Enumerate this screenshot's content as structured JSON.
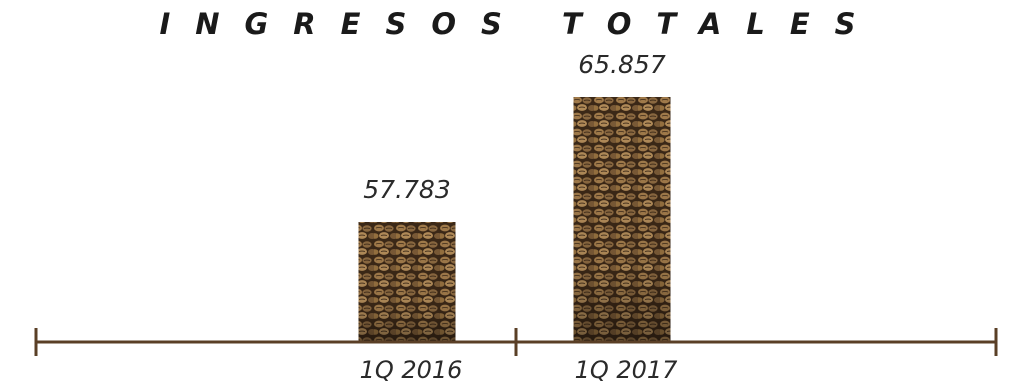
{
  "chart_data": {
    "type": "bar",
    "title": "INGRESOS TOTALES",
    "categories": [
      "1Q 2016",
      "1Q 2017"
    ],
    "values": [
      57783,
      65857
    ],
    "value_labels": [
      "57.783",
      "65.857"
    ],
    "xlabel": "",
    "ylabel": "",
    "grid": false,
    "bar_texture": "coffee-beans",
    "colors": {
      "axis": "#5a3f26",
      "bean_dark": "#2e1f12",
      "bean_mid": "#7a5a36",
      "bean_light": "#b8925e"
    }
  }
}
